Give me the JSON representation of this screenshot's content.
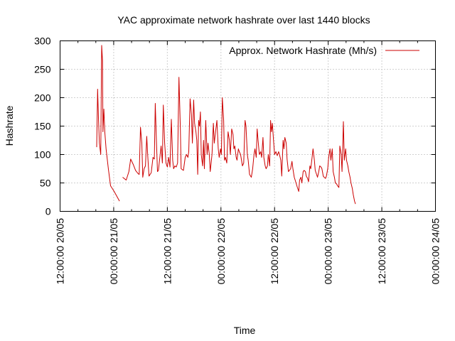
{
  "chart_data": {
    "type": "line",
    "title": "YAC approximate network hashrate over last 1440 blocks",
    "xlabel": "Time",
    "ylabel": "Hashrate",
    "ylim": [
      0,
      300
    ],
    "yticks": [
      0,
      50,
      100,
      150,
      200,
      250,
      300
    ],
    "xticks": [
      "12:00:00 20/05",
      "00:00:00 21/05",
      "12:00:00 21/05",
      "00:00:00 22/05",
      "12:00:00 22/05",
      "00:00:00 23/05",
      "12:00:00 23/05",
      "00:00:00 24/05"
    ],
    "grid": true,
    "legend_position": "top-right",
    "x_units": "hours since 12:00:00 20/05",
    "series": [
      {
        "name": "Approx. Network Hashrate (Mh/s)",
        "color": "#cc0000",
        "segments": [
          [
            [
              8.2,
              113
            ],
            [
              8.4,
              215
            ],
            [
              8.6,
              160
            ],
            [
              8.8,
              120
            ],
            [
              9.1,
              100
            ],
            [
              9.3,
              292
            ],
            [
              9.5,
              265
            ],
            [
              9.6,
              140
            ],
            [
              9.8,
              180
            ],
            [
              10.0,
              140
            ],
            [
              10.3,
              110
            ],
            [
              10.8,
              75
            ],
            [
              11.3,
              45
            ],
            [
              12.1,
              35
            ],
            [
              12.8,
              25
            ],
            [
              13.3,
              18
            ]
          ],
          [
            [
              14.0,
              60
            ],
            [
              14.8,
              55
            ],
            [
              15.4,
              70
            ],
            [
              15.8,
              92
            ],
            [
              16.4,
              82
            ],
            [
              16.9,
              72
            ],
            [
              17.5,
              66
            ],
            [
              17.7,
              65
            ],
            [
              18.0,
              148
            ],
            [
              18.3,
              120
            ],
            [
              18.5,
              60
            ],
            [
              18.8,
              75
            ],
            [
              19.1,
              80
            ],
            [
              19.4,
              132
            ],
            [
              19.6,
              100
            ],
            [
              19.9,
              62
            ],
            [
              20.4,
              68
            ],
            [
              20.8,
              95
            ],
            [
              21.1,
              92
            ],
            [
              21.3,
              190
            ],
            [
              21.5,
              140
            ],
            [
              21.8,
              70
            ],
            [
              22.0,
              72
            ],
            [
              22.4,
              100
            ],
            [
              22.6,
              115
            ],
            [
              22.9,
              85
            ],
            [
              23.1,
              187
            ],
            [
              23.4,
              120
            ],
            [
              23.7,
              85
            ],
            [
              24.0,
              78
            ],
            [
              24.3,
              95
            ],
            [
              24.6,
              78
            ],
            [
              24.9,
              162
            ],
            [
              25.2,
              90
            ],
            [
              25.4,
              75
            ],
            [
              25.7,
              80
            ],
            [
              26.0,
              78
            ],
            [
              26.3,
              85
            ],
            [
              26.6,
              236
            ],
            [
              26.9,
              150
            ],
            [
              27.1,
              75
            ],
            [
              27.6,
              72
            ],
            [
              28.0,
              95
            ],
            [
              28.3,
              100
            ],
            [
              28.6,
              95
            ],
            [
              28.8,
              105
            ],
            [
              29.1,
              198
            ],
            [
              29.4,
              170
            ],
            [
              29.6,
              120
            ],
            [
              29.9,
              196
            ],
            [
              30.1,
              155
            ],
            [
              30.4,
              140
            ],
            [
              30.6,
              125
            ],
            [
              30.8,
              65
            ],
            [
              31.0,
              160
            ],
            [
              31.2,
              150
            ],
            [
              31.4,
              175
            ],
            [
              31.6,
              100
            ],
            [
              31.9,
              80
            ],
            [
              32.1,
              125
            ],
            [
              32.3,
              75
            ],
            [
              32.6,
              160
            ],
            [
              32.9,
              100
            ],
            [
              33.1,
              120
            ],
            [
              33.4,
              100
            ],
            [
              33.6,
              70
            ],
            [
              34.0,
              100
            ],
            [
              34.3,
              155
            ],
            [
              34.5,
              120
            ],
            [
              34.8,
              140
            ],
            [
              35.1,
              160
            ],
            [
              35.4,
              110
            ],
            [
              35.6,
              95
            ],
            [
              35.9,
              110
            ],
            [
              36.1,
              100
            ],
            [
              36.3,
              200
            ],
            [
              36.6,
              160
            ],
            [
              36.8,
              90
            ],
            [
              37.0,
              95
            ],
            [
              37.3,
              85
            ],
            [
              37.6,
              140
            ],
            [
              37.9,
              125
            ],
            [
              38.1,
              100
            ],
            [
              38.4,
              145
            ],
            [
              38.7,
              135
            ],
            [
              38.9,
              110
            ],
            [
              39.1,
              115
            ],
            [
              39.4,
              95
            ],
            [
              39.6,
              90
            ],
            [
              39.9,
              110
            ],
            [
              40.1,
              105
            ],
            [
              40.4,
              100
            ],
            [
              40.6,
              90
            ],
            [
              40.8,
              80
            ],
            [
              41.1,
              85
            ],
            [
              41.4,
              160
            ],
            [
              41.6,
              150
            ],
            [
              41.9,
              100
            ],
            [
              42.1,
              90
            ],
            [
              42.4,
              65
            ],
            [
              42.8,
              60
            ],
            [
              43.1,
              75
            ],
            [
              43.4,
              100
            ],
            [
              43.6,
              110
            ],
            [
              43.9,
              95
            ],
            [
              44.1,
              145
            ],
            [
              44.3,
              125
            ],
            [
              44.6,
              100
            ],
            [
              44.9,
              105
            ],
            [
              45.1,
              95
            ],
            [
              45.4,
              130
            ],
            [
              45.6,
              95
            ],
            [
              45.9,
              80
            ],
            [
              46.1,
              75
            ],
            [
              46.4,
              80
            ],
            [
              46.6,
              100
            ],
            [
              46.9,
              80
            ],
            [
              47.1,
              160
            ],
            [
              47.3,
              140
            ],
            [
              47.5,
              155
            ],
            [
              47.8,
              120
            ],
            [
              48.0,
              100
            ],
            [
              48.3,
              105
            ],
            [
              48.6,
              98
            ],
            [
              48.9,
              105
            ],
            [
              49.1,
              100
            ],
            [
              49.4,
              90
            ],
            [
              49.6,
              62
            ],
            [
              49.9,
              125
            ],
            [
              50.1,
              110
            ],
            [
              50.3,
              130
            ],
            [
              50.6,
              120
            ],
            [
              50.8,
              92
            ],
            [
              51.1,
              70
            ],
            [
              51.3,
              72
            ],
            [
              51.6,
              75
            ],
            [
              51.9,
              88
            ],
            [
              52.1,
              75
            ],
            [
              52.4,
              60
            ],
            [
              52.8,
              50
            ],
            [
              53.1,
              42
            ],
            [
              53.4,
              35
            ],
            [
              53.6,
              55
            ],
            [
              53.9,
              60
            ],
            [
              54.1,
              50
            ],
            [
              54.4,
              70
            ],
            [
              54.6,
              72
            ],
            [
              54.9,
              70
            ],
            [
              55.1,
              62
            ],
            [
              55.4,
              58
            ],
            [
              55.6,
              52
            ],
            [
              55.9,
              80
            ],
            [
              56.1,
              75
            ],
            [
              56.4,
              95
            ],
            [
              56.6,
              110
            ],
            [
              56.9,
              90
            ],
            [
              57.1,
              72
            ],
            [
              57.4,
              65
            ],
            [
              57.6,
              60
            ],
            [
              57.9,
              70
            ],
            [
              58.1,
              80
            ],
            [
              58.4,
              78
            ],
            [
              58.6,
              75
            ],
            [
              58.9,
              62
            ],
            [
              59.1,
              60
            ],
            [
              59.4,
              58
            ],
            [
              59.6,
              62
            ],
            [
              59.9,
              75
            ],
            [
              60.1,
              95
            ],
            [
              60.4,
              110
            ],
            [
              60.6,
              90
            ],
            [
              60.9,
              110
            ],
            [
              61.1,
              70
            ],
            [
              61.4,
              60
            ],
            [
              61.6,
              50
            ],
            [
              61.9,
              48
            ],
            [
              62.1,
              45
            ],
            [
              62.4,
              42
            ],
            [
              62.6,
              115
            ],
            [
              62.9,
              100
            ],
            [
              63.1,
              70
            ],
            [
              63.4,
              158
            ],
            [
              63.6,
              90
            ],
            [
              63.9,
              110
            ],
            [
              64.1,
              90
            ],
            [
              64.4,
              80
            ],
            [
              64.6,
              70
            ],
            [
              64.9,
              60
            ],
            [
              65.1,
              50
            ],
            [
              65.4,
              40
            ],
            [
              65.6,
              30
            ],
            [
              65.9,
              18
            ],
            [
              66.1,
              13
            ]
          ]
        ]
      }
    ]
  }
}
